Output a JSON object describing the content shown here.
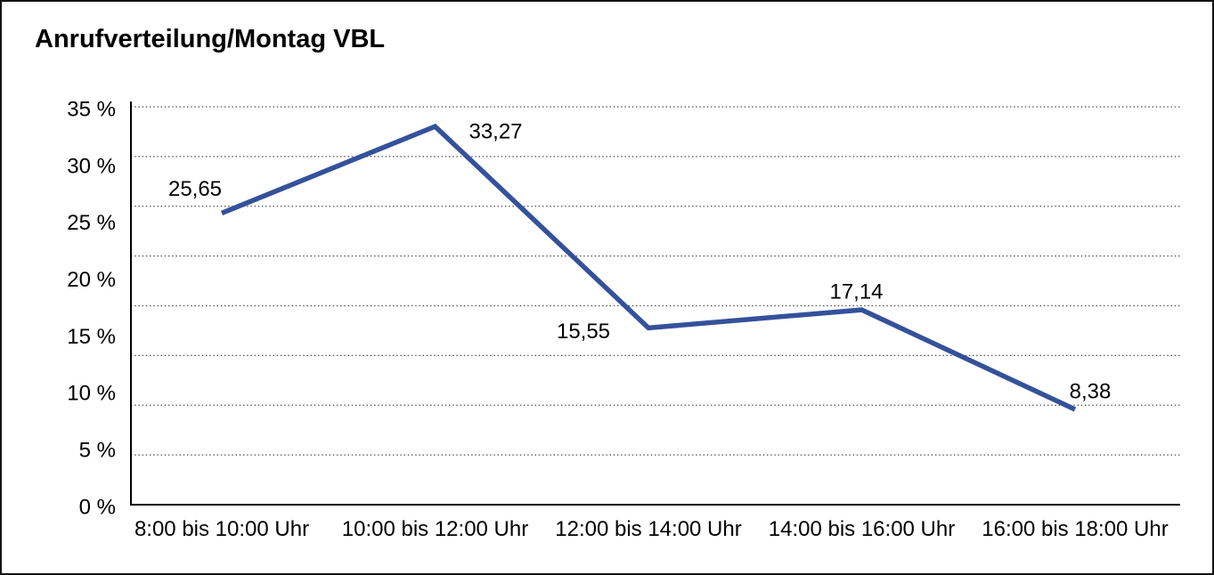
{
  "window": {
    "background_color": "#ffffff",
    "border_color": "#141414"
  },
  "chart_data": {
    "type": "line",
    "title": "Anrufverteilung/Montag VBL",
    "categories": [
      "8:00 bis 10:00 Uhr",
      "10:00 bis 12:00 Uhr",
      "12:00 bis 14:00 Uhr",
      "14:00 bis 16:00 Uhr",
      "16:00 bis 18:00 Uhr"
    ],
    "values": [
      25.65,
      33.27,
      15.55,
      17.14,
      8.38
    ],
    "value_labels": [
      "25,65",
      "33,27",
      "15,55",
      "17,14",
      "8,38"
    ],
    "y_tick_labels": [
      "35 %",
      "30 %",
      "25 %",
      "20 %",
      "15 %",
      "10 %",
      "5 %",
      "0 %"
    ],
    "ylim": [
      0,
      35
    ],
    "xlabel": "",
    "ylabel": "",
    "unit": "%",
    "decimal_separator": ",",
    "legend": "none",
    "grid": "horizontal-dotted",
    "grid_divisions": 8,
    "line_color": "#34519B",
    "grid_color": "#484848",
    "axis_color": "#000000",
    "text_color": "#000000"
  }
}
